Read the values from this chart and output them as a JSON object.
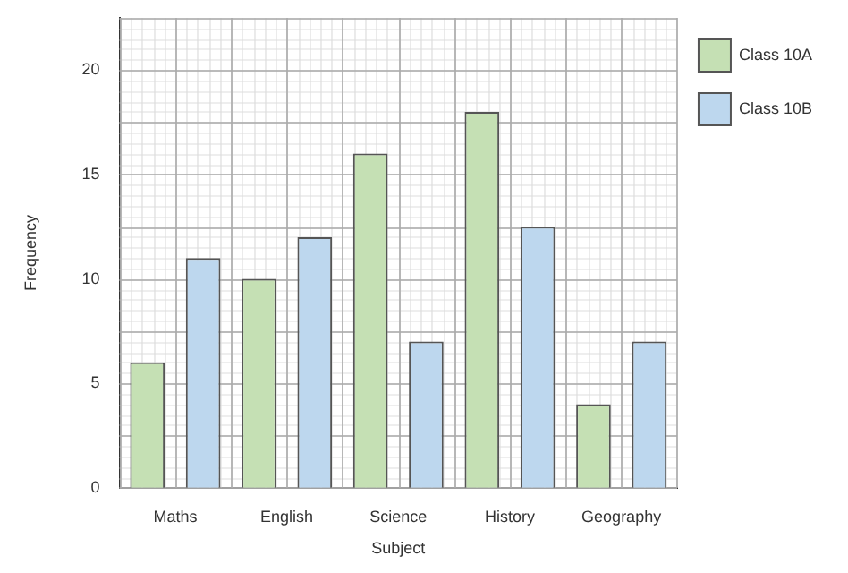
{
  "chart_data": {
    "type": "bar",
    "xlabel": "Subject",
    "ylabel": "Frequency",
    "categories": [
      "Maths",
      "English",
      "Science",
      "History",
      "Geography"
    ],
    "series": [
      {
        "name": "Class 10A",
        "color": "#c5e0b4",
        "values": [
          6,
          10,
          16,
          18,
          4
        ]
      },
      {
        "name": "Class 10B",
        "color": "#bdd7ee",
        "values": [
          11,
          12,
          7,
          12.5,
          7
        ]
      }
    ],
    "ylim": [
      0,
      22.5
    ],
    "yticks": [
      0,
      5,
      10,
      15,
      20
    ],
    "grid": true,
    "legend": "top right"
  }
}
